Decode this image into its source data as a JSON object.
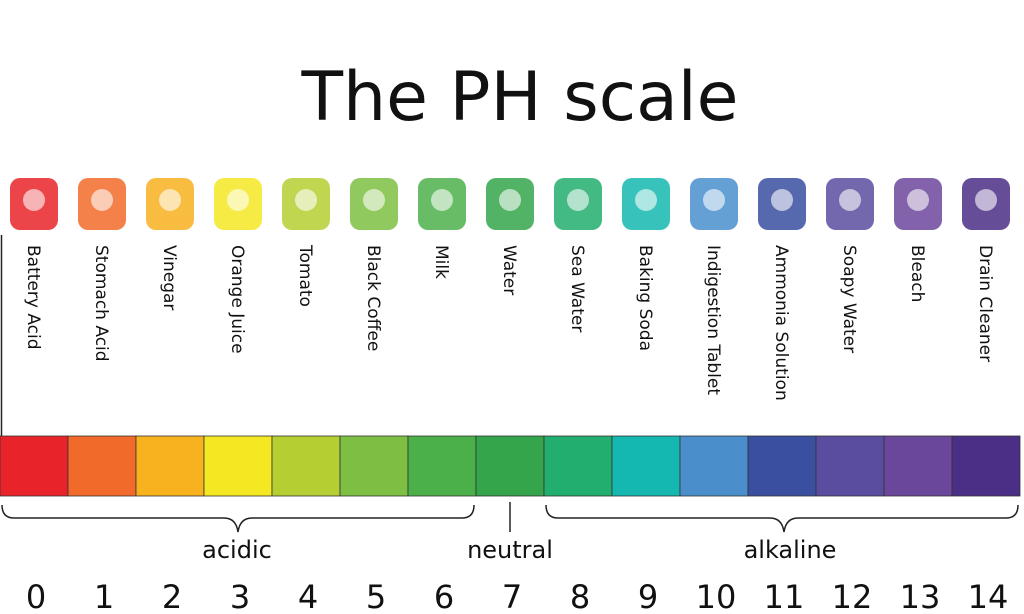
{
  "title": "The PH scale",
  "items": [
    {
      "label": "Battery Acid",
      "ph": 0,
      "color": "#e8242a"
    },
    {
      "label": "Stomach Acid",
      "ph": 1,
      "color": "#f26a2a"
    },
    {
      "label": "Vinegar",
      "ph": 2,
      "color": "#f7b21e"
    },
    {
      "label": "Orange Juice",
      "ph": 3,
      "color": "#f4e823"
    },
    {
      "label": "Tomato",
      "ph": 4,
      "color": "#b5cf33"
    },
    {
      "label": "Black Coffee",
      "ph": 5,
      "color": "#7cbf42"
    },
    {
      "label": "Milk",
      "ph": 6,
      "color": "#4cb04a"
    },
    {
      "label": "Water",
      "ph": 7,
      "color": "#34a54a"
    },
    {
      "label": "Sea Water",
      "ph": 8,
      "color": "#22ae6e"
    },
    {
      "label": "Baking Soda",
      "ph": 9,
      "color": "#14b8b0"
    },
    {
      "label": "Indigestion Tablet",
      "ph": 10,
      "color": "#4a8fcc"
    },
    {
      "label": "Ammonia Solution",
      "ph": 11,
      "color": "#3a4fa0"
    },
    {
      "label": "Soapy Water",
      "ph": 12,
      "color": "#5a4d9f"
    },
    {
      "label": "Bleach",
      "ph": 13,
      "color": "#6b479c"
    },
    {
      "label": "Drain Cleaner",
      "ph": 14,
      "color": "#4b2e86"
    }
  ],
  "groups": {
    "acidic": "acidic",
    "neutral": "neutral",
    "alkaline": "alkaline"
  }
}
